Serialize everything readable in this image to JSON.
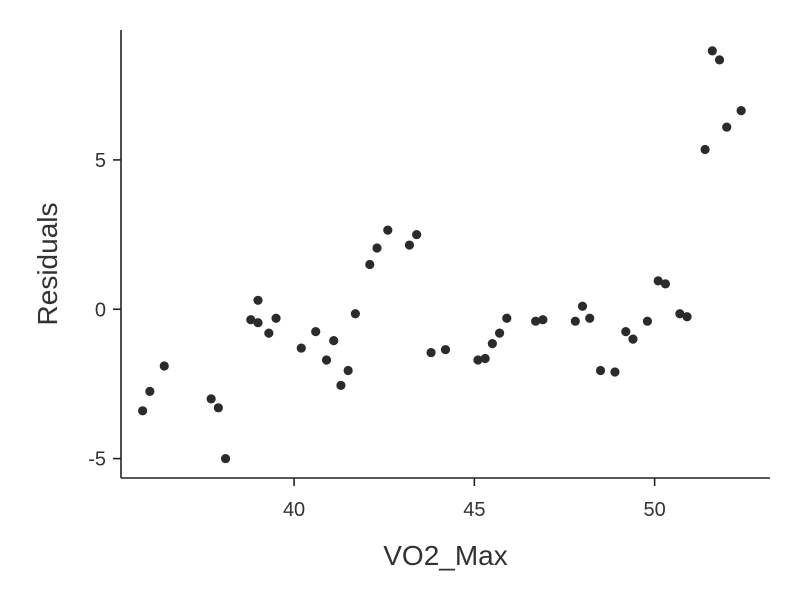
{
  "chart_data": {
    "type": "scatter",
    "title": "",
    "xlabel": "VO2_Max",
    "ylabel": "Residuals",
    "xlim": [
      35.2,
      53.2
    ],
    "ylim": [
      -5.65,
      9.35
    ],
    "xticks": [
      40,
      45,
      50
    ],
    "yticks": [
      -5,
      0,
      5
    ],
    "grid": false,
    "point_color": "#2b2b2b",
    "points": [
      {
        "x": 35.8,
        "y": -3.4
      },
      {
        "x": 36.0,
        "y": -2.75
      },
      {
        "x": 36.4,
        "y": -1.9
      },
      {
        "x": 37.7,
        "y": -3.0
      },
      {
        "x": 37.9,
        "y": -3.3
      },
      {
        "x": 38.1,
        "y": -5.0
      },
      {
        "x": 38.8,
        "y": -0.35
      },
      {
        "x": 39.0,
        "y": -0.45
      },
      {
        "x": 39.0,
        "y": 0.3
      },
      {
        "x": 39.3,
        "y": -0.8
      },
      {
        "x": 39.5,
        "y": -0.3
      },
      {
        "x": 40.2,
        "y": -1.3
      },
      {
        "x": 40.6,
        "y": -0.75
      },
      {
        "x": 40.9,
        "y": -1.7
      },
      {
        "x": 41.1,
        "y": -1.05
      },
      {
        "x": 41.3,
        "y": -2.55
      },
      {
        "x": 41.5,
        "y": -2.05
      },
      {
        "x": 41.7,
        "y": -0.15
      },
      {
        "x": 42.1,
        "y": 1.5
      },
      {
        "x": 42.3,
        "y": 2.05
      },
      {
        "x": 42.6,
        "y": 2.65
      },
      {
        "x": 43.2,
        "y": 2.15
      },
      {
        "x": 43.4,
        "y": 2.5
      },
      {
        "x": 43.8,
        "y": -1.45
      },
      {
        "x": 44.2,
        "y": -1.35
      },
      {
        "x": 45.1,
        "y": -1.7
      },
      {
        "x": 45.3,
        "y": -1.65
      },
      {
        "x": 45.5,
        "y": -1.15
      },
      {
        "x": 45.7,
        "y": -0.8
      },
      {
        "x": 45.9,
        "y": -0.3
      },
      {
        "x": 46.7,
        "y": -0.4
      },
      {
        "x": 46.9,
        "y": -0.35
      },
      {
        "x": 47.8,
        "y": -0.4
      },
      {
        "x": 48.0,
        "y": 0.1
      },
      {
        "x": 48.2,
        "y": -0.3
      },
      {
        "x": 48.5,
        "y": -2.05
      },
      {
        "x": 48.9,
        "y": -2.1
      },
      {
        "x": 49.2,
        "y": -0.75
      },
      {
        "x": 49.4,
        "y": -1.0
      },
      {
        "x": 49.8,
        "y": -0.4
      },
      {
        "x": 50.1,
        "y": 0.95
      },
      {
        "x": 50.3,
        "y": 0.85
      },
      {
        "x": 50.7,
        "y": -0.15
      },
      {
        "x": 50.9,
        "y": -0.25
      },
      {
        "x": 51.4,
        "y": 5.35
      },
      {
        "x": 51.6,
        "y": 8.65
      },
      {
        "x": 51.8,
        "y": 8.35
      },
      {
        "x": 52.0,
        "y": 6.1
      },
      {
        "x": 52.4,
        "y": 6.65
      }
    ]
  }
}
